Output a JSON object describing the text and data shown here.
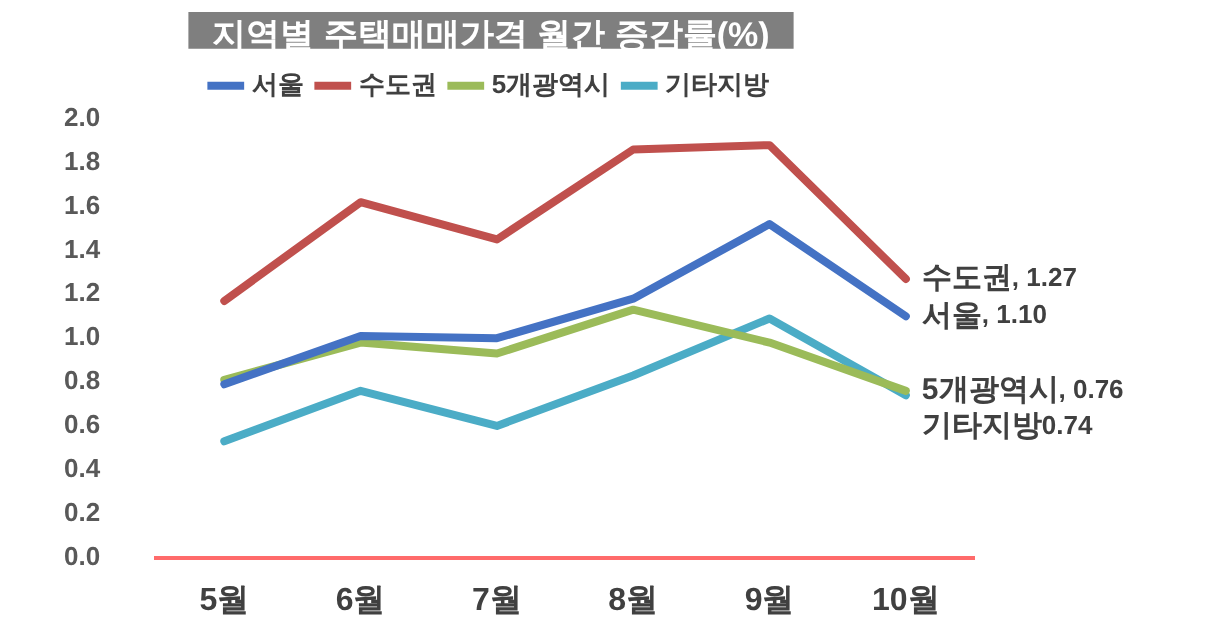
{
  "chart_data": {
    "type": "line",
    "title": "지역별 주택매매가격 월간 증감률(%)",
    "categories": [
      "5월",
      "6월",
      "7월",
      "8월",
      "9월",
      "10월"
    ],
    "series": [
      {
        "name": "서울",
        "color": "#4472c4",
        "values": [
          0.79,
          1.01,
          1.0,
          1.18,
          1.52,
          1.1
        ]
      },
      {
        "name": "수도권",
        "color": "#c0504d",
        "values": [
          1.17,
          1.62,
          1.45,
          1.86,
          1.88,
          1.27
        ]
      },
      {
        "name": "5개광역시",
        "color": "#9bbb59",
        "values": [
          0.81,
          0.98,
          0.93,
          1.13,
          0.98,
          0.76
        ]
      },
      {
        "name": "기타지방",
        "color": "#4bacc6",
        "values": [
          0.53,
          0.76,
          0.6,
          0.83,
          1.09,
          0.74
        ]
      }
    ],
    "ylim": [
      0,
      2
    ],
    "yticks": [
      {
        "value": 0,
        "label": "0.0"
      },
      {
        "value": 0.2,
        "label": "0.2"
      },
      {
        "value": 0.4,
        "label": "0.4"
      },
      {
        "value": 0.6,
        "label": "0.6"
      },
      {
        "value": 0.8,
        "label": "0.8"
      },
      {
        "value": 1,
        "label": "1.0"
      },
      {
        "value": 1.2,
        "label": "1.2"
      },
      {
        "value": 1.4,
        "label": "1.4"
      },
      {
        "value": 1.6,
        "label": "1.6"
      },
      {
        "value": 1.8,
        "label": "1.8"
      },
      {
        "value": 2,
        "label": "2.0"
      }
    ],
    "annotations": [
      {
        "text": "수도권, 1.27",
        "x": "10월",
        "y": 1.27
      },
      {
        "text": "서울, 1.10",
        "x": "10월",
        "y": 1.1
      },
      {
        "text": "5개광역시, 0.76",
        "x": "10월",
        "y": 0.76
      },
      {
        "text": "기타지방0.74",
        "x": "10월",
        "y": 0.74
      }
    ],
    "grid": false,
    "legend": "top",
    "marker": "none",
    "line_style": "solid"
  }
}
